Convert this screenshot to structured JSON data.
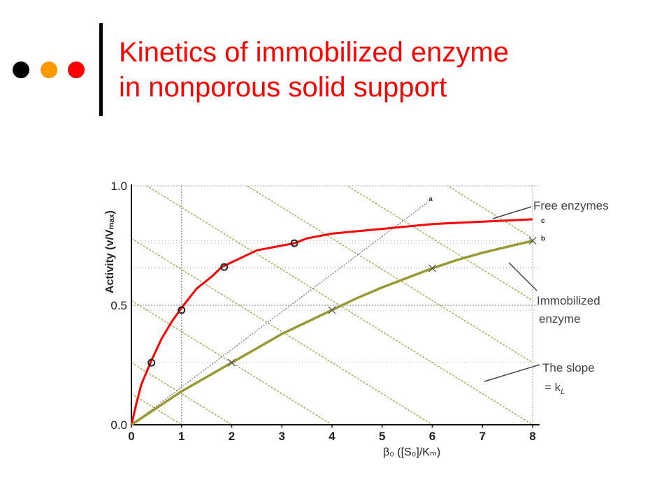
{
  "slide": {
    "title_line1": "Kinetics of immobilized enzyme",
    "title_line2": "in nonporous solid support",
    "title_color": "#ff0000",
    "bullet_colors": [
      "#000000",
      "#ff9900",
      "#ff0000"
    ]
  },
  "chart_data": {
    "type": "line",
    "title": "",
    "xlabel": "β₀ ([S₀]/Kₘ)",
    "ylabel": "Activity (v/Vₘₐₓ)",
    "xlim": [
      0,
      8
    ],
    "ylim": [
      0,
      1.0
    ],
    "x_ticks": [
      0,
      1,
      2,
      3,
      4,
      5,
      6,
      7,
      8
    ],
    "y_ticks": [
      0.0,
      0.5,
      1.0
    ],
    "y_tick_labels": [
      "0.0",
      "0.5",
      "1.0"
    ],
    "grid": true,
    "series": [
      {
        "label": "c",
        "color": "#ff0000",
        "x": [
          0,
          0.1,
          0.2,
          0.4,
          0.6,
          0.8,
          1.0,
          1.3,
          1.6,
          1.8,
          2.0,
          2.5,
          3.0,
          3.25,
          3.5,
          4.0,
          4.5,
          5.0,
          5.5,
          6.0,
          6.5,
          7.0,
          7.5,
          8.0
        ],
        "y": [
          0,
          0.09,
          0.17,
          0.27,
          0.36,
          0.43,
          0.49,
          0.57,
          0.62,
          0.66,
          0.68,
          0.73,
          0.75,
          0.76,
          0.78,
          0.8,
          0.81,
          0.82,
          0.83,
          0.84,
          0.845,
          0.85,
          0.855,
          0.86
        ],
        "markers": {
          "x": [
            0.4,
            1.0,
            1.85,
            3.25
          ],
          "y": [
            0.26,
            0.48,
            0.66,
            0.76
          ],
          "shape": "circle"
        }
      },
      {
        "label": "b",
        "color": "#999933",
        "x": [
          0,
          0.5,
          1.0,
          1.5,
          2.0,
          2.5,
          3.0,
          3.5,
          4.0,
          4.5,
          5.0,
          5.5,
          6.0,
          6.5,
          7.0,
          7.5,
          8.0
        ],
        "y": [
          0,
          0.07,
          0.14,
          0.2,
          0.26,
          0.32,
          0.38,
          0.43,
          0.48,
          0.53,
          0.575,
          0.615,
          0.655,
          0.69,
          0.72,
          0.745,
          0.77
        ],
        "markers": {
          "x": [
            2.0,
            4.0,
            6.0,
            8.0
          ],
          "y": [
            0.26,
            0.48,
            0.655,
            0.77
          ],
          "shape": "cross"
        }
      }
    ],
    "reference_lines": [
      {
        "label": "a",
        "color": "#555555",
        "from": [
          0,
          0
        ],
        "to": [
          5.9,
          0.93
        ]
      }
    ],
    "slope_lines": {
      "color": "#999933",
      "x_intercepts": [
        1,
        2,
        4,
        6,
        8,
        10,
        12,
        14
      ],
      "y_intercept_factor": 0.13
    },
    "annotations": [
      {
        "text": "Free enzymes",
        "target": "c"
      },
      {
        "text": "Immobilized",
        "target": "b"
      },
      {
        "text": "enzyme",
        "target": "b"
      },
      {
        "text": "The slope",
        "target": "slope"
      },
      {
        "text": "= k",
        "subscript": "L",
        "target": "slope"
      }
    ]
  }
}
